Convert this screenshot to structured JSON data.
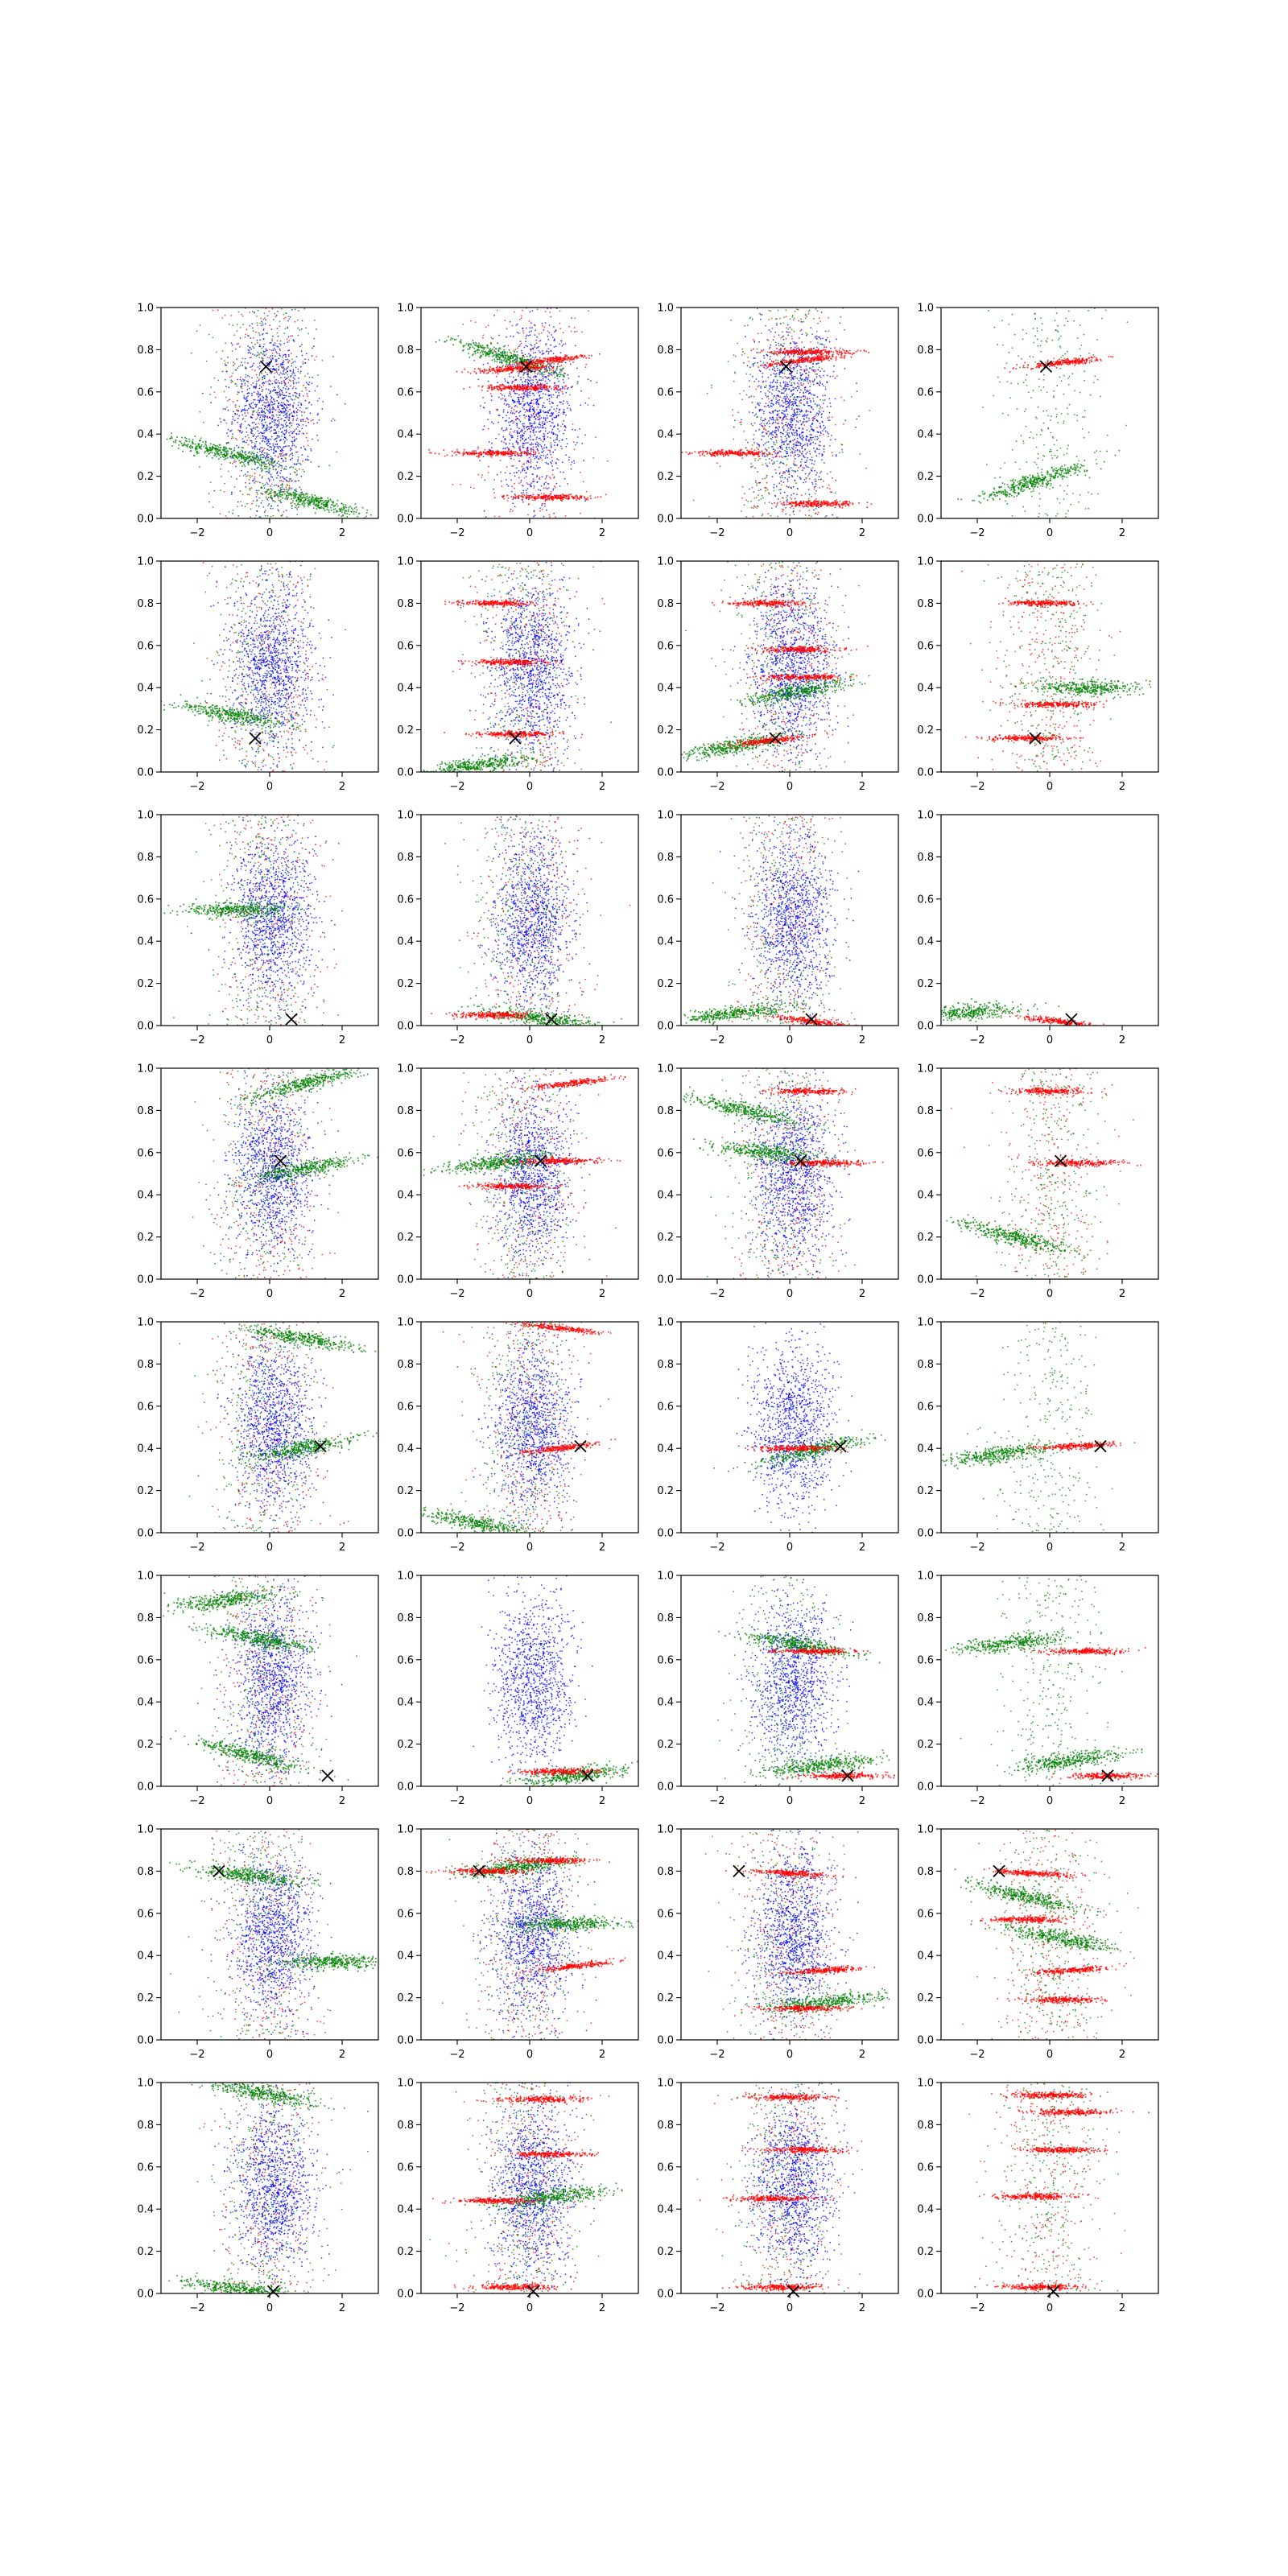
{
  "figure": {
    "rows": 8,
    "cols": 4,
    "colors": {
      "blue": "#0000ff",
      "red": "#ff0000",
      "green": "#008000",
      "marker": "#000000"
    }
  },
  "chart_data": {
    "type": "scatter",
    "subplot_count": 32,
    "xlim": [
      -3,
      3
    ],
    "ylim": [
      0,
      1
    ],
    "xticks": [
      -2,
      0,
      2
    ],
    "yticks": [
      0.0,
      0.2,
      0.4,
      0.6,
      0.8,
      1.0
    ],
    "xtick_labels": [
      "−2",
      "0",
      "2"
    ],
    "ytick_labels": [
      "0.0",
      "0.2",
      "0.4",
      "0.6",
      "0.8",
      "1.0"
    ],
    "grid": false,
    "series_colors": [
      "blue",
      "red",
      "green"
    ],
    "x_markers_by_row": [
      {
        "x": -0.1,
        "y": 0.72
      },
      {
        "x": -0.4,
        "y": 0.16
      },
      {
        "x": 0.6,
        "y": 0.03
      },
      {
        "x": 0.3,
        "y": 0.56
      },
      {
        "x": 1.4,
        "y": 0.41
      },
      {
        "x": 1.6,
        "y": 0.05
      },
      {
        "x": -1.4,
        "y": 0.8
      },
      {
        "x": 0.1,
        "y": 0.01
      }
    ],
    "subplots": [
      {
        "row": 0,
        "col": 0,
        "blue": true,
        "red_bands": [],
        "green_bands": [
          [
            0.31,
            -1.2,
            -0.04
          ],
          [
            0.08,
            1.2,
            -0.04
          ]
        ],
        "green_scatter": true,
        "red_scatter": true
      },
      {
        "row": 0,
        "col": 1,
        "blue": true,
        "red_bands": [
          [
            0.75,
            0.6,
            0.02
          ],
          [
            0.71,
            -0.4,
            0.01
          ],
          [
            0.62,
            -0.2,
            0.0
          ],
          [
            0.31,
            -1.0,
            0.0
          ],
          [
            0.1,
            0.6,
            0.0
          ]
        ],
        "green_bands": [
          [
            0.76,
            -0.6,
            -0.05
          ]
        ],
        "green_scatter": false,
        "red_scatter": true
      },
      {
        "row": 0,
        "col": 2,
        "blue": true,
        "red_bands": [
          [
            0.75,
            0.4,
            0.02
          ],
          [
            0.79,
            0.5,
            0.0
          ],
          [
            0.31,
            -1.5,
            0.0
          ],
          [
            0.07,
            0.8,
            0.0
          ]
        ],
        "green_bands": [],
        "green_scatter": true,
        "red_scatter": true
      },
      {
        "row": 0,
        "col": 3,
        "blue": false,
        "red_bands": [
          [
            0.74,
            0.5,
            0.02
          ]
        ],
        "green_bands": [
          [
            0.17,
            -0.5,
            0.05
          ]
        ],
        "green_scatter": true,
        "red_scatter": false
      },
      {
        "row": 1,
        "col": 0,
        "blue": true,
        "red_bands": [],
        "green_bands": [
          [
            0.27,
            -1.0,
            -0.03
          ]
        ],
        "green_scatter": true,
        "red_scatter": true
      },
      {
        "row": 1,
        "col": 1,
        "blue": true,
        "red_bands": [
          [
            0.8,
            -1.0,
            0.0
          ],
          [
            0.52,
            -0.5,
            0.0
          ],
          [
            0.18,
            -0.4,
            0.0
          ]
        ],
        "green_bands": [
          [
            0.03,
            -1.5,
            0.02
          ]
        ],
        "green_scatter": true,
        "red_scatter": true
      },
      {
        "row": 1,
        "col": 2,
        "blue": true,
        "red_bands": [
          [
            0.15,
            -0.5,
            0.02
          ],
          [
            0.58,
            0.3,
            0.0
          ],
          [
            0.45,
            0.3,
            0.0
          ],
          [
            0.8,
            -0.6,
            0.0
          ]
        ],
        "green_bands": [
          [
            0.12,
            -1.6,
            0.03
          ],
          [
            0.38,
            0.2,
            0.03
          ]
        ],
        "green_scatter": true,
        "red_scatter": true
      },
      {
        "row": 1,
        "col": 3,
        "blue": false,
        "red_bands": [
          [
            0.16,
            -0.7,
            0.0
          ],
          [
            0.32,
            0.2,
            0.0
          ],
          [
            0.8,
            -0.1,
            0.0
          ]
        ],
        "green_bands": [
          [
            0.4,
            1.0,
            0.0
          ]
        ],
        "green_scatter": true,
        "red_scatter": true
      },
      {
        "row": 2,
        "col": 0,
        "blue": true,
        "red_bands": [],
        "green_bands": [
          [
            0.55,
            -0.9,
            0.0
          ]
        ],
        "green_scatter": true,
        "red_scatter": true
      },
      {
        "row": 2,
        "col": 1,
        "blue": true,
        "red_bands": [
          [
            0.05,
            -1.0,
            0.0
          ]
        ],
        "green_bands": [
          [
            0.03,
            0.4,
            -0.02
          ]
        ],
        "green_scatter": true,
        "red_scatter": true
      },
      {
        "row": 2,
        "col": 2,
        "blue": true,
        "red_bands": [
          [
            0.02,
            0.6,
            -0.02
          ]
        ],
        "green_bands": [
          [
            0.06,
            -1.5,
            0.02
          ]
        ],
        "green_scatter": true,
        "red_scatter": true
      },
      {
        "row": 2,
        "col": 3,
        "blue": false,
        "red_bands": [
          [
            0.02,
            0.2,
            -0.02
          ]
        ],
        "green_bands": [
          [
            0.06,
            -2.3,
            0.01
          ]
        ],
        "green_scatter": false,
        "red_scatter": false
      },
      {
        "row": 3,
        "col": 0,
        "blue": true,
        "red_bands": [],
        "green_bands": [
          [
            0.93,
            1.0,
            0.04
          ],
          [
            0.52,
            0.9,
            0.03
          ]
        ],
        "green_scatter": true,
        "red_scatter": true
      },
      {
        "row": 3,
        "col": 1,
        "blue": true,
        "red_bands": [
          [
            0.93,
            1.2,
            0.02
          ],
          [
            0.56,
            0.9,
            0.0
          ],
          [
            0.44,
            -0.5,
            0.0
          ]
        ],
        "green_bands": [
          [
            0.55,
            -1.0,
            0.02
          ]
        ],
        "green_scatter": true,
        "red_scatter": true
      },
      {
        "row": 3,
        "col": 2,
        "blue": true,
        "red_bands": [
          [
            0.55,
            1.0,
            0.0
          ],
          [
            0.89,
            0.5,
            0.0
          ]
        ],
        "green_bands": [
          [
            0.8,
            -1.2,
            -0.04
          ],
          [
            0.6,
            -0.6,
            -0.02
          ]
        ],
        "green_scatter": true,
        "red_scatter": true
      },
      {
        "row": 3,
        "col": 3,
        "blue": false,
        "red_bands": [
          [
            0.55,
            0.8,
            0.0
          ],
          [
            0.89,
            0.0,
            0.0
          ]
        ],
        "green_bands": [
          [
            0.2,
            -1.0,
            -0.04
          ]
        ],
        "green_scatter": true,
        "red_scatter": true
      },
      {
        "row": 4,
        "col": 0,
        "blue": true,
        "red_bands": [],
        "green_bands": [
          [
            0.92,
            0.9,
            -0.03
          ],
          [
            0.4,
            0.9,
            0.03
          ]
        ],
        "green_scatter": true,
        "red_scatter": true
      },
      {
        "row": 4,
        "col": 1,
        "blue": true,
        "red_bands": [
          [
            0.97,
            0.8,
            -0.02
          ],
          [
            0.4,
            0.8,
            0.02
          ]
        ],
        "green_bands": [
          [
            0.05,
            -1.6,
            -0.03
          ]
        ],
        "green_scatter": true,
        "red_scatter": true
      },
      {
        "row": 4,
        "col": 2,
        "blue": true,
        "red_bands": [
          [
            0.4,
            0.2,
            0.0
          ]
        ],
        "green_bands": [
          [
            0.39,
            0.7,
            0.04
          ]
        ],
        "green_scatter": false,
        "red_scatter": false
      },
      {
        "row": 4,
        "col": 3,
        "blue": false,
        "red_bands": [
          [
            0.41,
            0.7,
            0.01
          ]
        ],
        "green_bands": [
          [
            0.37,
            -1.5,
            0.02
          ]
        ],
        "green_scatter": true,
        "red_scatter": false
      },
      {
        "row": 5,
        "col": 0,
        "blue": true,
        "red_bands": [],
        "green_bands": [
          [
            0.88,
            -1.3,
            0.02
          ],
          [
            0.7,
            -0.3,
            -0.03
          ],
          [
            0.15,
            -0.6,
            -0.04
          ]
        ],
        "green_scatter": true,
        "red_scatter": true
      },
      {
        "row": 5,
        "col": 1,
        "blue": true,
        "red_bands": [
          [
            0.07,
            0.8,
            0.0
          ]
        ],
        "green_bands": [
          [
            0.05,
            1.2,
            0.02
          ]
        ],
        "green_scatter": false,
        "red_scatter": false
      },
      {
        "row": 5,
        "col": 2,
        "blue": true,
        "red_bands": [
          [
            0.05,
            1.5,
            0.0
          ],
          [
            0.64,
            0.7,
            0.0
          ]
        ],
        "green_bands": [
          [
            0.67,
            0.3,
            -0.03
          ],
          [
            0.1,
            0.9,
            0.02
          ]
        ],
        "green_scatter": true,
        "red_scatter": false
      },
      {
        "row": 5,
        "col": 3,
        "blue": false,
        "red_bands": [
          [
            0.05,
            1.6,
            0.0
          ],
          [
            0.64,
            1.0,
            0.0
          ]
        ],
        "green_bands": [
          [
            0.68,
            -1.0,
            0.02
          ],
          [
            0.12,
            0.5,
            0.02
          ]
        ],
        "green_scatter": true,
        "red_scatter": false
      },
      {
        "row": 6,
        "col": 0,
        "blue": true,
        "red_bands": [],
        "green_bands": [
          [
            0.78,
            -0.6,
            -0.02
          ],
          [
            0.37,
            1.7,
            0.0
          ]
        ],
        "green_scatter": true,
        "red_scatter": true
      },
      {
        "row": 6,
        "col": 1,
        "blue": true,
        "red_bands": [
          [
            0.8,
            -1.2,
            0.0
          ],
          [
            0.35,
            1.3,
            0.02
          ],
          [
            0.85,
            0.6,
            0.0
          ]
        ],
        "green_bands": [
          [
            0.82,
            -0.4,
            0.02
          ],
          [
            0.55,
            1.1,
            0.0
          ]
        ],
        "green_scatter": true,
        "red_scatter": true
      },
      {
        "row": 6,
        "col": 2,
        "blue": true,
        "red_bands": [
          [
            0.79,
            0.0,
            -0.01
          ],
          [
            0.33,
            1.0,
            0.01
          ],
          [
            0.15,
            0.4,
            0.0
          ]
        ],
        "green_bands": [
          [
            0.18,
            1.0,
            0.02
          ]
        ],
        "green_scatter": true,
        "red_scatter": true
      },
      {
        "row": 6,
        "col": 3,
        "blue": false,
        "red_bands": [
          [
            0.79,
            -0.5,
            -0.01
          ],
          [
            0.33,
            0.6,
            0.01
          ],
          [
            0.19,
            0.4,
            0.0
          ],
          [
            0.57,
            -0.6,
            0.0
          ]
        ],
        "green_bands": [
          [
            0.68,
            -0.7,
            -0.04
          ],
          [
            0.48,
            0.3,
            -0.03
          ]
        ],
        "green_scatter": true,
        "red_scatter": true
      },
      {
        "row": 7,
        "col": 0,
        "blue": true,
        "red_bands": [],
        "green_bands": [
          [
            0.95,
            -0.2,
            -0.03
          ],
          [
            0.02,
            -0.8,
            -0.02
          ]
        ],
        "green_scatter": true,
        "red_scatter": true
      },
      {
        "row": 7,
        "col": 1,
        "blue": true,
        "red_bands": [
          [
            0.44,
            -1.0,
            0.0
          ],
          [
            0.03,
            -0.4,
            0.0
          ],
          [
            0.92,
            0.3,
            0.0
          ],
          [
            0.66,
            0.5,
            0.0
          ]
        ],
        "green_bands": [
          [
            0.46,
            0.7,
            0.02
          ]
        ],
        "green_scatter": true,
        "red_scatter": true
      },
      {
        "row": 7,
        "col": 2,
        "blue": true,
        "red_bands": [
          [
            0.45,
            -0.4,
            0.0
          ],
          [
            0.03,
            -0.2,
            0.0
          ],
          [
            0.93,
            0.0,
            0.0
          ],
          [
            0.68,
            0.4,
            0.0
          ]
        ],
        "green_bands": [],
        "green_scatter": true,
        "red_scatter": true
      },
      {
        "row": 7,
        "col": 3,
        "blue": false,
        "red_bands": [
          [
            0.46,
            -0.4,
            0.0
          ],
          [
            0.03,
            -0.3,
            0.0
          ],
          [
            0.94,
            0.0,
            0.0
          ],
          [
            0.68,
            0.3,
            0.0
          ],
          [
            0.86,
            0.6,
            0.0
          ]
        ],
        "green_bands": [],
        "green_scatter": true,
        "red_scatter": true
      }
    ]
  }
}
